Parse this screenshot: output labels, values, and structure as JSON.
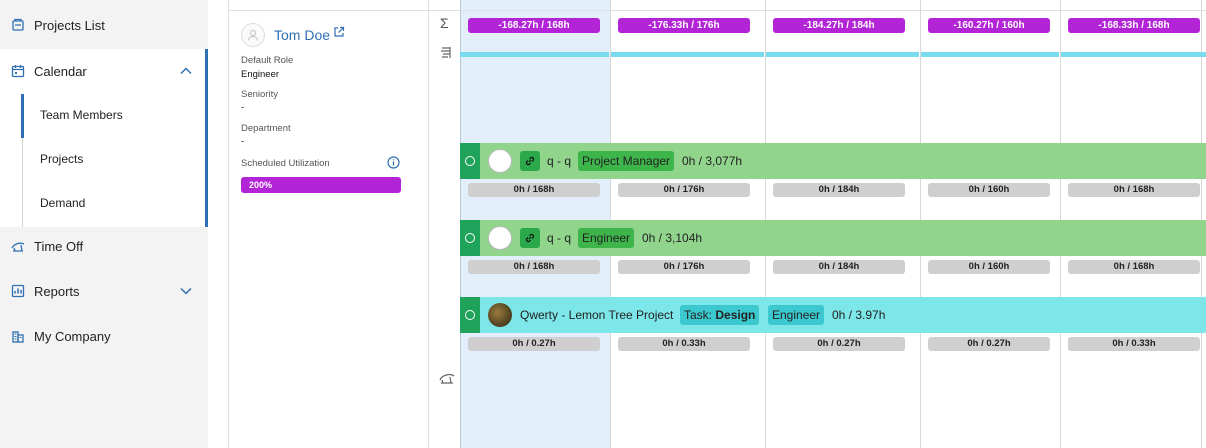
{
  "sidebar": {
    "items": [
      {
        "label": "Projects List",
        "icon": "projects-list-icon"
      },
      {
        "label": "Calendar",
        "icon": "calendar-icon",
        "expanded": true
      },
      {
        "label": "Time Off",
        "icon": "time-off-icon"
      },
      {
        "label": "Reports",
        "icon": "reports-icon",
        "expanded": false
      },
      {
        "label": "My Company",
        "icon": "company-icon"
      }
    ],
    "calendar_subitems": [
      {
        "label": "Team Members",
        "active": true
      },
      {
        "label": "Projects"
      },
      {
        "label": "Demand"
      }
    ]
  },
  "person": {
    "name": "Tom Doe",
    "default_role_label": "Default Role",
    "default_role": "Engineer",
    "seniority_label": "Seniority",
    "seniority": "-",
    "department_label": "Department",
    "department": "-",
    "utilization_label": "Scheduled Utilization",
    "utilization": "200%"
  },
  "summary": {
    "icon": "Σ",
    "badges": [
      "-168.27h / 168h",
      "-176.33h / 176h",
      "-184.27h / 184h",
      "-160.27h / 160h",
      "-168.33h / 168h"
    ]
  },
  "allocations": [
    {
      "project": "q - q",
      "role": "Project Manager",
      "total": "0h / 3,077h",
      "color": "#91d48c",
      "hours": [
        "0h / 168h",
        "0h / 176h",
        "0h / 184h",
        "0h / 160h",
        "0h / 168h"
      ]
    },
    {
      "project": "q - q",
      "role": "Engineer",
      "total": "0h / 3,104h",
      "color": "#91d48c",
      "hours": [
        "0h / 168h",
        "0h / 176h",
        "0h / 184h",
        "0h / 160h",
        "0h / 168h"
      ]
    },
    {
      "project": "Qwerty - Lemon Tree Project",
      "task_prefix": "Task:",
      "task": "Design",
      "role": "Engineer",
      "total": "0h / 3.97h",
      "color": "#7de6e8",
      "hours": [
        "0h / 0.27h",
        "0h / 0.33h",
        "0h / 0.27h",
        "0h / 0.27h",
        "0h / 0.33h"
      ]
    }
  ],
  "colors": {
    "accent": "#2f6fb3",
    "utilization": "#b324d6",
    "handle": "#1fa35a",
    "today": "#e3eefb"
  }
}
